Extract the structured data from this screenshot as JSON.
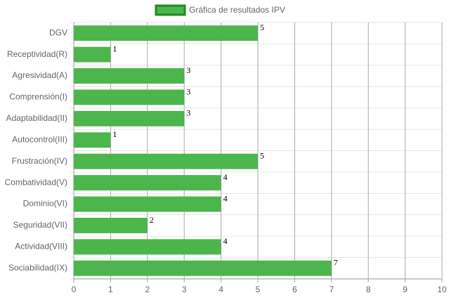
{
  "chart_data": {
    "type": "bar",
    "orientation": "horizontal",
    "legend": "Gráfica de resultados IPV",
    "categories": [
      "DGV",
      "Receptividad(R)",
      "Agresividad(A)",
      "Comprensión(I)",
      "Adaptabilidad(II)",
      "Autocontrol(III)",
      "Frustración(IV)",
      "Combatividad(V)",
      "Dominio(VI)",
      "Seguridad(VII)",
      "Actividad(VIII)",
      "Sociabilidad(IX)"
    ],
    "values": [
      5,
      1,
      3,
      3,
      3,
      1,
      5,
      4,
      4,
      2,
      4,
      7
    ],
    "color": "#4cb54c",
    "xlim": [
      0,
      10
    ],
    "xticks": [
      0,
      1,
      2,
      3,
      4,
      5,
      6,
      7,
      8,
      9,
      10
    ],
    "grid": true
  }
}
